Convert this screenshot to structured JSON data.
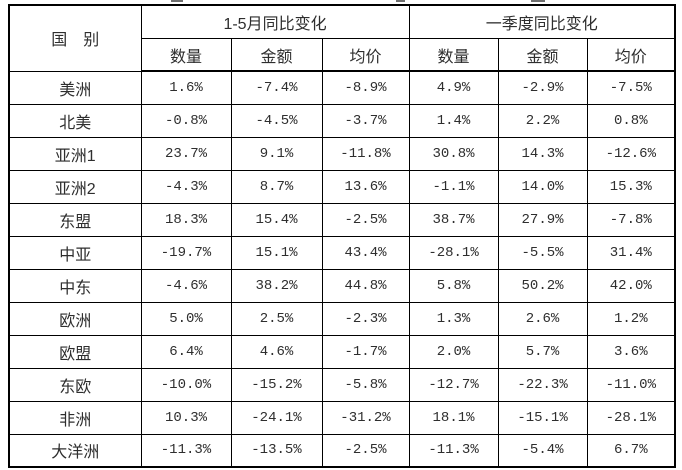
{
  "colors": {
    "border": "#000000",
    "text": "#2e2e2e",
    "background": "#ffffff"
  },
  "table": {
    "corner_header": "国　别",
    "group_headers": [
      "1-5月同比变化",
      "一季度同比变化"
    ],
    "sub_headers": [
      "数量",
      "金额",
      "均价",
      "数量",
      "金额",
      "均价"
    ],
    "rows": [
      {
        "label": "美洲",
        "values": [
          "1.6%",
          "-7.4%",
          "-8.9%",
          "4.9%",
          "-2.9%",
          "-7.5%"
        ]
      },
      {
        "label": "北美",
        "values": [
          "-0.8%",
          "-4.5%",
          "-3.7%",
          "1.4%",
          "2.2%",
          "0.8%"
        ]
      },
      {
        "label": "亚洲1",
        "values": [
          "23.7%",
          "9.1%",
          "-11.8%",
          "30.8%",
          "14.3%",
          "-12.6%"
        ]
      },
      {
        "label": "亚洲2",
        "values": [
          "-4.3%",
          "8.7%",
          "13.6%",
          "-1.1%",
          "14.0%",
          "15.3%"
        ]
      },
      {
        "label": "东盟",
        "values": [
          "18.3%",
          "15.4%",
          "-2.5%",
          "38.7%",
          "27.9%",
          "-7.8%"
        ]
      },
      {
        "label": "中亚",
        "values": [
          "-19.7%",
          "15.1%",
          "43.4%",
          "-28.1%",
          "-5.5%",
          "31.4%"
        ]
      },
      {
        "label": "中东",
        "values": [
          "-4.6%",
          "38.2%",
          "44.8%",
          "5.8%",
          "50.2%",
          "42.0%"
        ]
      },
      {
        "label": "欧洲",
        "values": [
          "5.0%",
          "2.5%",
          "-2.3%",
          "1.3%",
          "2.6%",
          "1.2%"
        ]
      },
      {
        "label": "欧盟",
        "values": [
          "6.4%",
          "4.6%",
          "-1.7%",
          "2.0%",
          "5.7%",
          "3.6%"
        ]
      },
      {
        "label": "东欧",
        "values": [
          "-10.0%",
          "-15.2%",
          "-5.8%",
          "-12.7%",
          "-22.3%",
          "-11.0%"
        ]
      },
      {
        "label": "非洲",
        "values": [
          "10.3%",
          "-24.1%",
          "-31.2%",
          "18.1%",
          "-15.1%",
          "-28.1%"
        ]
      },
      {
        "label": "大洋洲",
        "values": [
          "-11.3%",
          "-13.5%",
          "-2.5%",
          "-11.3%",
          "-5.4%",
          "6.7%"
        ]
      }
    ]
  }
}
